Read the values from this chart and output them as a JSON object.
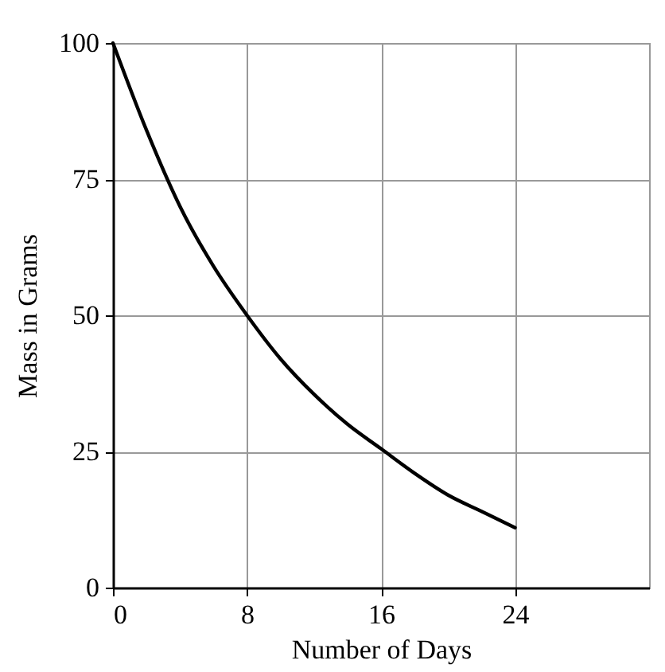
{
  "chart_data": {
    "type": "line",
    "xlabel": "Number of Days",
    "ylabel": "Mass in Grams",
    "x": [
      0,
      2,
      4,
      6,
      8,
      10,
      12,
      14,
      16,
      18,
      20,
      22,
      24
    ],
    "series": [
      {
        "color": "#000000",
        "values": [
          100,
          84,
          70,
          59,
          50,
          42,
          35.5,
          30,
          25.5,
          21,
          17,
          14,
          11
        ]
      }
    ],
    "xlim": [
      0,
      32
    ],
    "xticks": [
      0,
      8,
      16,
      24
    ],
    "ylim": [
      0,
      100
    ],
    "yticks": [
      0,
      25,
      50,
      75,
      100
    ],
    "grid": true,
    "marker": "none",
    "line_style": "solid"
  }
}
